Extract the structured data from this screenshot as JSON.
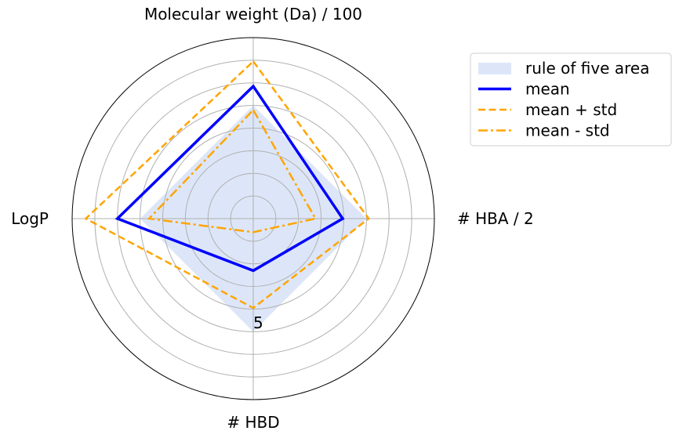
{
  "chart_data": {
    "type": "radar",
    "axes": [
      "Molecular weight (Da) / 100",
      "# HBA / 2",
      "# HBD",
      "LogP"
    ],
    "rmax": 8,
    "grid_rings": [
      1,
      2,
      3,
      4,
      5,
      6,
      7
    ],
    "tick_label": "5",
    "series": [
      {
        "name": "rule of five area",
        "style": "fill",
        "color": "#dde6f8",
        "values": [
          5,
          5,
          5,
          5
        ]
      },
      {
        "name": "mean",
        "style": "solid",
        "color": "#0000ff",
        "values": [
          5.85,
          3.95,
          2.3,
          6.0
        ]
      },
      {
        "name": "mean + std",
        "style": "dashed",
        "color": "#ffa500",
        "values": [
          6.95,
          5.1,
          3.95,
          7.4
        ]
      },
      {
        "name": "mean - std",
        "style": "dashdot",
        "color": "#ffa500",
        "values": [
          4.8,
          2.75,
          0.6,
          4.6
        ]
      }
    ],
    "legend_position": "top-right, outside plot"
  }
}
